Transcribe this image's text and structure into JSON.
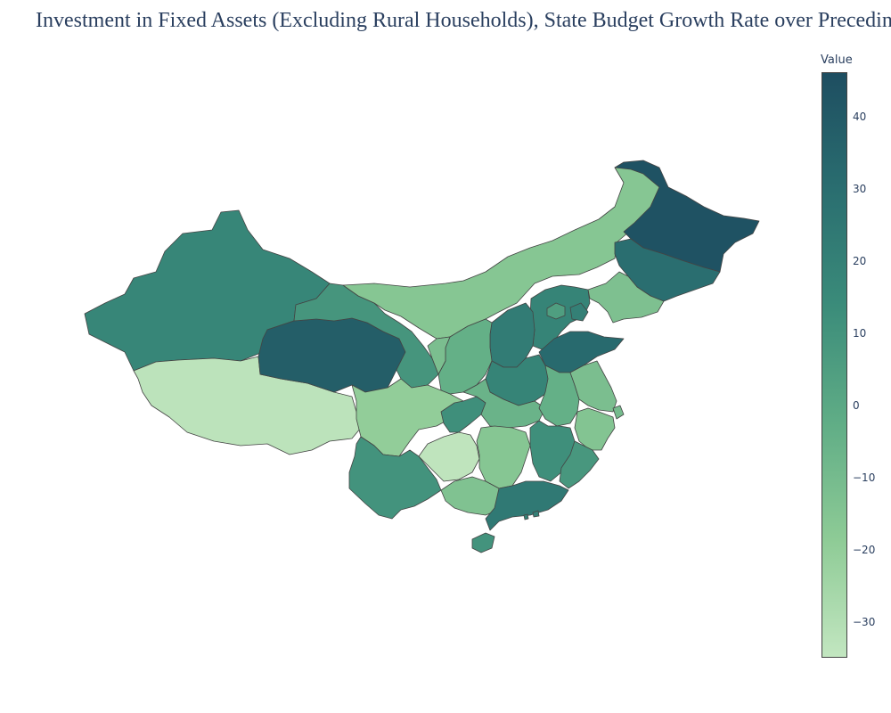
{
  "chart_data": {
    "type": "choropleth",
    "title": "Investment in Fixed Assets (Excluding Rural Households), State Budget Growth Rate over Preceding",
    "colorbar": {
      "title": "Value",
      "range": [
        -35,
        46
      ],
      "ticks": [
        -30,
        -20,
        -10,
        0,
        10,
        20,
        30,
        40
      ],
      "tick_labels": [
        "−30",
        "−20",
        "−10",
        "0",
        "10",
        "20",
        "30",
        "40"
      ]
    },
    "colorscale": [
      "#c2e6c0",
      "#8ecb96",
      "#60ad86",
      "#3b8c7a",
      "#2a6e70",
      "#1e4e61"
    ],
    "border_color": "#444444",
    "regions": [
      {
        "name": "Xinjiang",
        "value": 17
      },
      {
        "name": "Tibet",
        "value": -33
      },
      {
        "name": "Qinghai",
        "value": 38
      },
      {
        "name": "Gansu",
        "value": 9
      },
      {
        "name": "Inner Mongolia",
        "value": -16
      },
      {
        "name": "Heilongjiang",
        "value": 44
      },
      {
        "name": "Jilin",
        "value": 30
      },
      {
        "name": "Liaoning",
        "value": -13
      },
      {
        "name": "Hebei",
        "value": 18
      },
      {
        "name": "Beijing",
        "value": 5
      },
      {
        "name": "Tianjin",
        "value": 20
      },
      {
        "name": "Shanxi",
        "value": 22
      },
      {
        "name": "Shaanxi",
        "value": -4
      },
      {
        "name": "Ningxia",
        "value": -12
      },
      {
        "name": "Shandong",
        "value": 32
      },
      {
        "name": "Henan",
        "value": 18
      },
      {
        "name": "Sichuan",
        "value": -20
      },
      {
        "name": "Chongqing",
        "value": 12
      },
      {
        "name": "Hubei",
        "value": -6
      },
      {
        "name": "Anhui",
        "value": -4
      },
      {
        "name": "Jiangsu",
        "value": -12
      },
      {
        "name": "Shanghai",
        "value": -10
      },
      {
        "name": "Zhejiang",
        "value": -15
      },
      {
        "name": "Yunnan",
        "value": 10
      },
      {
        "name": "Guizhou",
        "value": -34
      },
      {
        "name": "Hunan",
        "value": -16
      },
      {
        "name": "Jiangxi",
        "value": 12
      },
      {
        "name": "Fujian",
        "value": 8
      },
      {
        "name": "Guangxi",
        "value": -14
      },
      {
        "name": "Guangdong",
        "value": 24
      },
      {
        "name": "Hainan",
        "value": 10
      },
      {
        "name": "Hong Kong",
        "value": 20
      },
      {
        "name": "Macau",
        "value": 20
      }
    ]
  }
}
